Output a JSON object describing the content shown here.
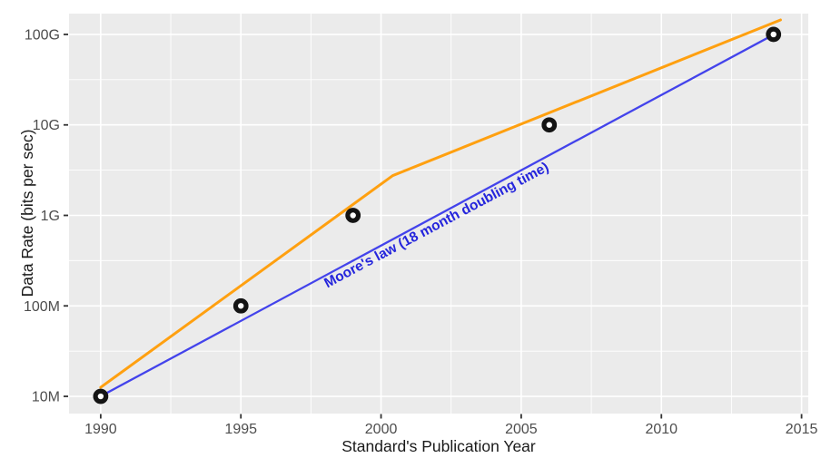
{
  "chart_data": {
    "type": "scatter+line",
    "title": "",
    "xlabel": "Standard's Publication Year",
    "ylabel": "Data Rate (bits per sec)",
    "x_ticks": [
      1990,
      1995,
      2000,
      2005,
      2010,
      2015
    ],
    "x_minor_ticks": [
      1992.5,
      1997.5,
      2002.5,
      2007.5,
      2012.5
    ],
    "y_ticks": [
      {
        "label": "10M",
        "log10": 7
      },
      {
        "label": "100M",
        "log10": 8
      },
      {
        "label": "1G",
        "log10": 9
      },
      {
        "label": "10G",
        "log10": 10
      },
      {
        "label": "100G",
        "log10": 11
      }
    ],
    "y_minor_log10": [
      7.5,
      8.5,
      9.5,
      10.5
    ],
    "xlim": [
      1988.87,
      2015.24
    ],
    "ylim_log10": [
      6.81,
      11.23
    ],
    "grid": true,
    "legend": "none",
    "points": [
      {
        "year": 1990,
        "rate_label": "10M",
        "rate_bps": 10000000.0,
        "log10": 7
      },
      {
        "year": 1995,
        "rate_label": "100M",
        "rate_bps": 100000000.0,
        "log10": 8
      },
      {
        "year": 1999,
        "rate_label": "1G",
        "rate_bps": 1000000000.0,
        "log10": 9
      },
      {
        "year": 2006,
        "rate_label": "10G",
        "rate_bps": 10000000000.0,
        "log10": 10
      },
      {
        "year": 2014,
        "rate_label": "100G",
        "rate_bps": 100000000000.0,
        "log10": 11
      }
    ],
    "series": [
      {
        "name": "standards-trend",
        "color": "#FFA010",
        "stroke_width": 3,
        "path_year_log10": [
          [
            1990.0,
            7.1
          ],
          [
            2000.42,
            9.44
          ],
          [
            2014.25,
            11.16
          ]
        ]
      },
      {
        "name": "moores-law",
        "color": "#4343EB",
        "stroke_width": 2.3,
        "path_year_log10": [
          [
            1990.23,
            7.04
          ],
          [
            2014.02,
            11.0
          ]
        ]
      }
    ],
    "annotation": {
      "text": "Moore's law (18 month doubling time)",
      "color": "#2525DC",
      "rotation_deg": -28,
      "anchor_year": 2002.05,
      "anchor_log10": 8.85
    },
    "colors": {
      "panel_background": "#EBEBEB",
      "gridline": "#FFFFFF",
      "tick_mark": "#333333",
      "tick_label": "#4d4d4d",
      "axis_title": "#1a1a1a",
      "point_stroke": "#141414",
      "point_fill": "#FFFFFF"
    }
  }
}
